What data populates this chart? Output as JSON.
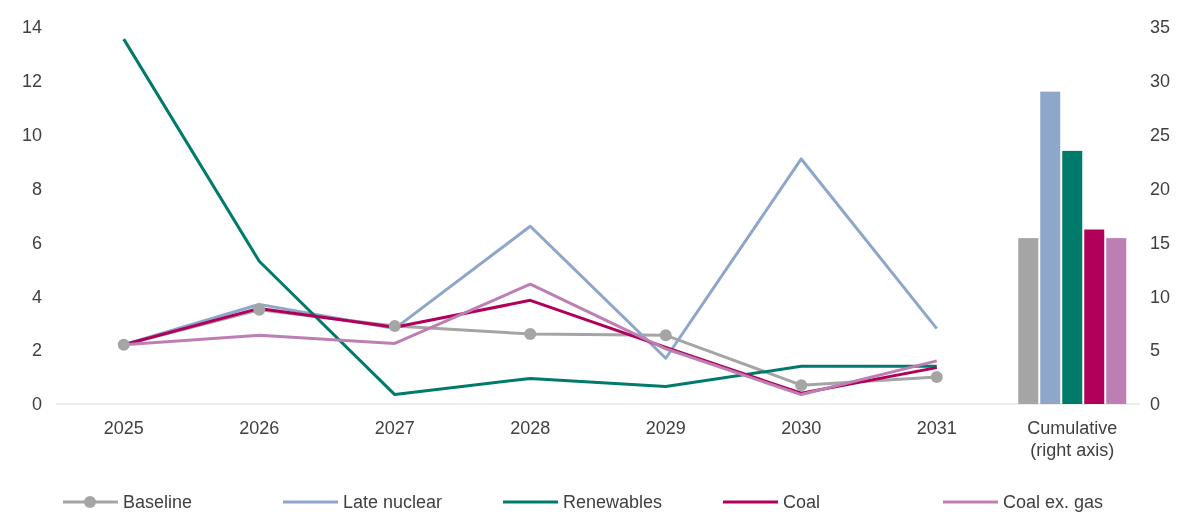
{
  "chart_data": {
    "type": "line",
    "categories": [
      "2025",
      "2026",
      "2027",
      "2028",
      "2029",
      "2030",
      "2031",
      "Cumulative\n(right axis)"
    ],
    "series": [
      {
        "name": "Baseline",
        "color": "#a5a5a5",
        "marker": "circle",
        "values": [
          2.2,
          3.5,
          2.9,
          2.6,
          2.55,
          0.7,
          1.0,
          null
        ]
      },
      {
        "name": "Late nuclear",
        "color": "#8ea6c9",
        "values": [
          2.2,
          3.7,
          2.8,
          6.6,
          1.7,
          9.1,
          2.8,
          null
        ]
      },
      {
        "name": "Renewables",
        "color": "#007a6a",
        "values": [
          13.55,
          5.3,
          0.35,
          0.95,
          0.65,
          1.4,
          1.4,
          null
        ]
      },
      {
        "name": "Coal",
        "color": "#b0005a",
        "values": [
          2.2,
          3.55,
          2.85,
          3.85,
          2.1,
          0.4,
          1.35,
          null
        ]
      },
      {
        "name": "Coal ex. gas",
        "color": "#bd7fb3",
        "values": [
          2.2,
          2.55,
          2.25,
          4.45,
          2.05,
          0.35,
          1.6,
          null
        ]
      },
      {
        "type": "bar",
        "axis": "y2",
        "color": "#a5a5a5",
        "values": [
          null,
          null,
          null,
          null,
          null,
          null,
          null,
          15.4
        ]
      },
      {
        "type": "bar",
        "axis": "y2",
        "color": "#8ea6c9",
        "values": [
          null,
          null,
          null,
          null,
          null,
          null,
          null,
          29.0
        ]
      },
      {
        "type": "bar",
        "axis": "y2",
        "color": "#007a6a",
        "values": [
          null,
          null,
          null,
          null,
          null,
          null,
          null,
          23.5
        ]
      },
      {
        "type": "bar",
        "axis": "y2",
        "color": "#b0005a",
        "values": [
          null,
          null,
          null,
          null,
          null,
          null,
          null,
          16.2
        ]
      },
      {
        "type": "bar",
        "axis": "y2",
        "color": "#bd7fb3",
        "values": [
          null,
          null,
          null,
          null,
          null,
          null,
          null,
          15.4
        ]
      }
    ],
    "ylim": [
      0,
      14
    ],
    "yticks": [
      0,
      2,
      4,
      6,
      8,
      10,
      12,
      14
    ],
    "y2lim": [
      0,
      35
    ],
    "y2ticks": [
      0,
      5,
      10,
      15,
      20,
      25,
      30,
      35
    ],
    "marker": "none",
    "legend": "bottom",
    "grid": false
  }
}
